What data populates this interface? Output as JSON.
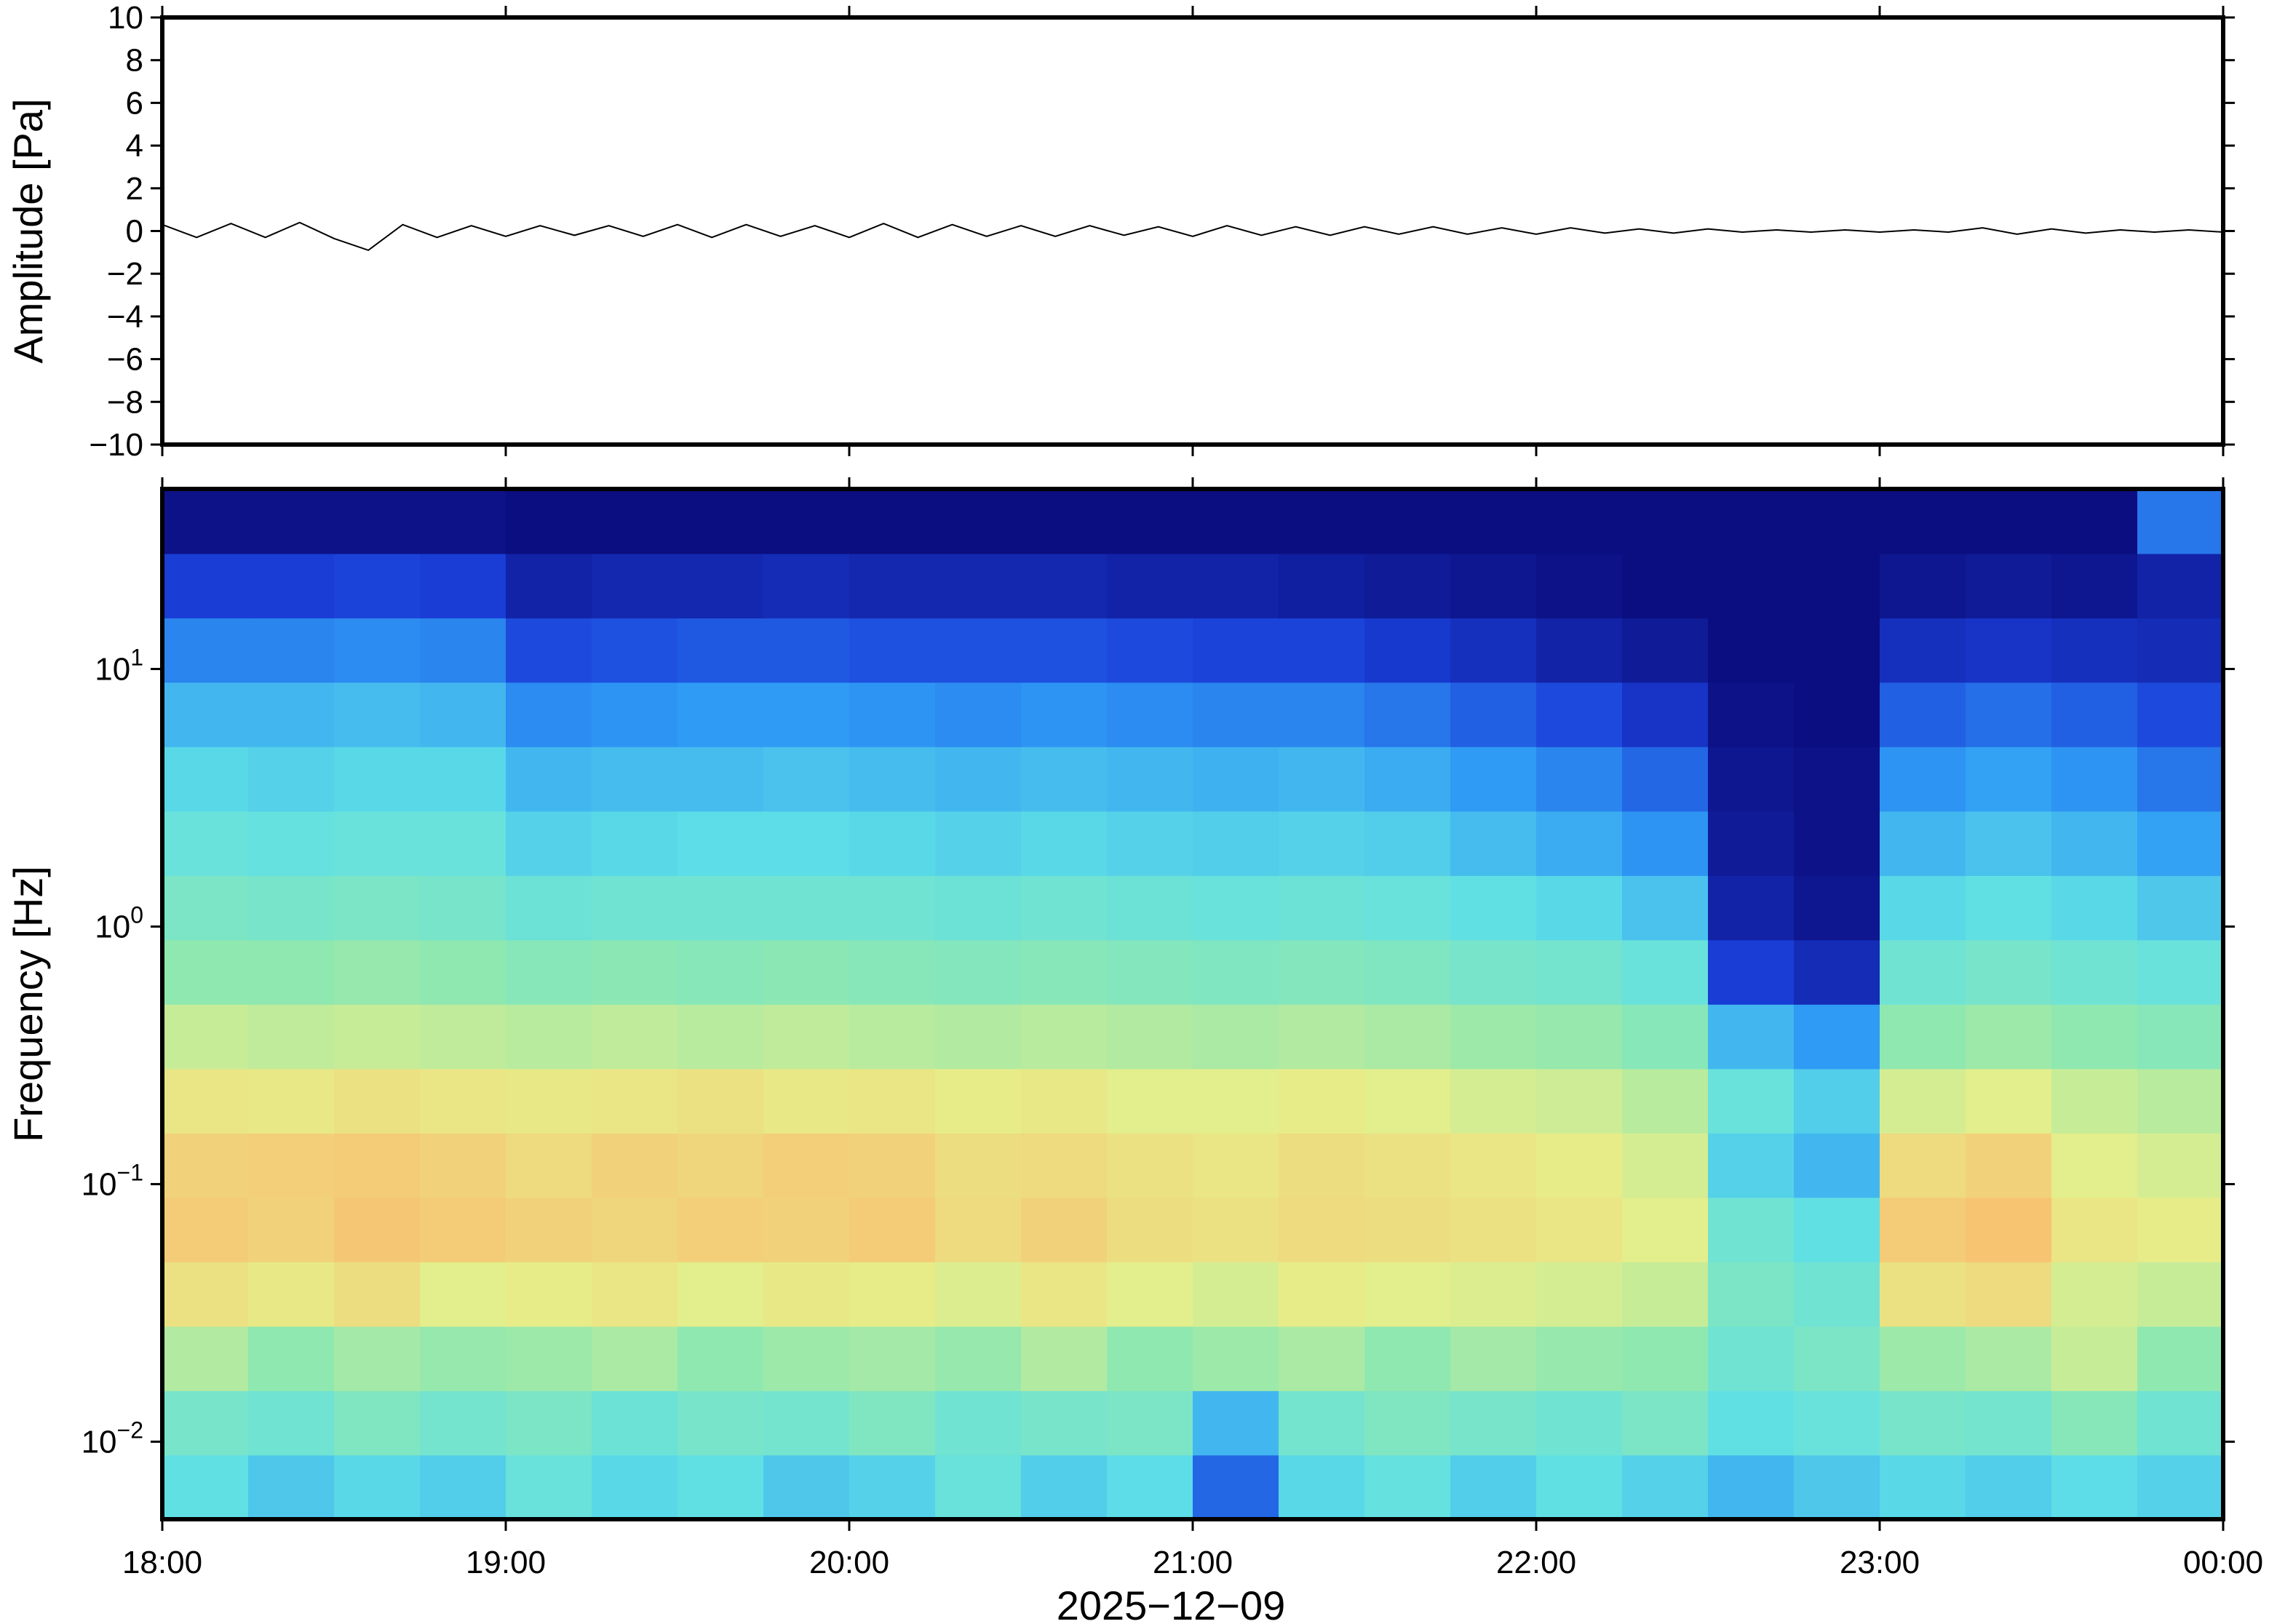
{
  "chart_data": [
    {
      "type": "line",
      "ylabel": "Amplitude [Pa]",
      "color": "#000000",
      "xlim": [
        18,
        24
      ],
      "xticks": [
        18,
        19,
        20,
        21,
        22,
        23,
        24
      ],
      "ylim": [
        -10,
        10
      ],
      "yticks": [
        {
          "value": -10,
          "label": "−10"
        },
        {
          "value": -8,
          "label": "−8"
        },
        {
          "value": -6,
          "label": "−6"
        },
        {
          "value": -4,
          "label": "−4"
        },
        {
          "value": -2,
          "label": "−2"
        },
        0,
        2,
        4,
        6,
        8,
        10
      ],
      "x": [
        18,
        18.1,
        18.2,
        18.3,
        18.4,
        18.5,
        18.6,
        18.7,
        18.8,
        18.9,
        19,
        19.1,
        19.2,
        19.3,
        19.4,
        19.5,
        19.6,
        19.7,
        19.8,
        19.9,
        20,
        20.1,
        20.2,
        20.3,
        20.4,
        20.5,
        20.6,
        20.7,
        20.8,
        20.9,
        21,
        21.1,
        21.2,
        21.3,
        21.4,
        21.5,
        21.6,
        21.7,
        21.8,
        21.9,
        22,
        22.1,
        22.2,
        22.3,
        22.4,
        22.5,
        22.6,
        22.7,
        22.8,
        22.9,
        23,
        23.1,
        23.2,
        23.3,
        23.4,
        23.5,
        23.6,
        23.7,
        23.8,
        23.9,
        24
      ],
      "values": [
        0.3,
        -0.3,
        0.35,
        -0.3,
        0.4,
        -0.35,
        -0.9,
        0.3,
        -0.3,
        0.25,
        -0.25,
        0.25,
        -0.2,
        0.25,
        -0.25,
        0.3,
        -0.3,
        0.3,
        -0.25,
        0.25,
        -0.3,
        0.35,
        -0.3,
        0.3,
        -0.25,
        0.25,
        -0.25,
        0.25,
        -0.2,
        0.2,
        -0.25,
        0.25,
        -0.2,
        0.2,
        -0.2,
        0.2,
        -0.15,
        0.2,
        -0.15,
        0.15,
        -0.15,
        0.15,
        -0.1,
        0.1,
        -0.1,
        0.1,
        -0.05,
        0.05,
        -0.05,
        0.05,
        -0.05,
        0.05,
        -0.05,
        0.15,
        -0.15,
        0.1,
        -0.1,
        0.05,
        -0.05,
        0.05,
        -0.05
      ]
    },
    {
      "type": "heatmap",
      "ylabel": "Frequency [Hz]",
      "xlabel": "2025−12−09",
      "log_y": true,
      "xlim": [
        18,
        24
      ],
      "xticks": [
        {
          "value": 18,
          "label": "18:00"
        },
        {
          "value": 19,
          "label": "19:00"
        },
        {
          "value": 20,
          "label": "20:00"
        },
        {
          "value": 21,
          "label": "21:00"
        },
        {
          "value": 22,
          "label": "22:00"
        },
        {
          "value": 23,
          "label": "23:00"
        },
        {
          "value": 24,
          "label": "00:00"
        }
      ],
      "ylim": [
        0.005,
        50
      ],
      "yticks": [
        {
          "value": 0.01,
          "label": "10",
          "exponent": "−2"
        },
        {
          "value": 0.1,
          "label": "10",
          "exponent": "−1"
        },
        {
          "value": 1,
          "label": "10",
          "exponent": "0"
        },
        {
          "value": 10,
          "label": "10",
          "exponent": "1"
        }
      ],
      "x_edges": [
        18,
        18.25,
        18.5,
        18.75,
        19,
        19.25,
        19.5,
        19.75,
        20,
        20.25,
        20.5,
        20.75,
        21,
        21.25,
        21.5,
        21.75,
        22,
        22.25,
        22.5,
        22.75,
        23,
        23.25,
        23.5,
        23.75,
        24
      ],
      "y_edges": [
        0.005,
        0.00889,
        0.0158,
        0.0281,
        0.05,
        0.0889,
        0.158,
        0.281,
        0.5,
        0.889,
        1.58,
        2.81,
        5,
        8.89,
        15.8,
        28.1,
        50
      ],
      "zlim": [
        0,
        1
      ],
      "colormap": [
        "#0a0a78",
        "#1a3fd9",
        "#2f9bf5",
        "#5fe0e6",
        "#8fe8b0",
        "#e6ee8a",
        "#f8c070",
        "#f48a50",
        "#e04030"
      ],
      "z": [
        [
          0.38,
          0.33,
          0.36,
          0.34,
          0.4,
          0.36,
          0.38,
          0.33,
          0.35,
          0.4,
          0.34,
          0.37,
          0.18,
          0.36,
          0.39,
          0.34,
          0.38,
          0.35,
          0.3,
          0.33,
          0.36,
          0.34,
          0.37,
          0.35
        ],
        [
          0.44,
          0.42,
          0.46,
          0.43,
          0.45,
          0.41,
          0.44,
          0.43,
          0.46,
          0.42,
          0.44,
          0.45,
          0.3,
          0.43,
          0.46,
          0.44,
          0.42,
          0.45,
          0.38,
          0.4,
          0.44,
          0.43,
          0.48,
          0.42
        ],
        [
          0.55,
          0.5,
          0.53,
          0.51,
          0.52,
          0.54,
          0.5,
          0.52,
          0.53,
          0.51,
          0.55,
          0.5,
          0.52,
          0.54,
          0.5,
          0.53,
          0.51,
          0.5,
          0.42,
          0.45,
          0.52,
          0.54,
          0.58,
          0.5
        ],
        [
          0.66,
          0.64,
          0.67,
          0.62,
          0.63,
          0.65,
          0.62,
          0.64,
          0.63,
          0.61,
          0.65,
          0.62,
          0.6,
          0.63,
          0.62,
          0.61,
          0.6,
          0.58,
          0.45,
          0.42,
          0.66,
          0.68,
          0.6,
          0.58
        ],
        [
          0.72,
          0.7,
          0.73,
          0.72,
          0.7,
          0.69,
          0.71,
          0.7,
          0.72,
          0.68,
          0.7,
          0.67,
          0.66,
          0.68,
          0.67,
          0.66,
          0.65,
          0.62,
          0.42,
          0.38,
          0.72,
          0.74,
          0.65,
          0.63
        ],
        [
          0.7,
          0.71,
          0.72,
          0.7,
          0.68,
          0.7,
          0.69,
          0.71,
          0.7,
          0.67,
          0.68,
          0.66,
          0.65,
          0.67,
          0.66,
          0.65,
          0.63,
          0.6,
          0.35,
          0.3,
          0.68,
          0.7,
          0.62,
          0.6
        ],
        [
          0.65,
          0.64,
          0.66,
          0.65,
          0.64,
          0.65,
          0.66,
          0.64,
          0.65,
          0.63,
          0.64,
          0.62,
          0.62,
          0.63,
          0.62,
          0.6,
          0.59,
          0.56,
          0.4,
          0.34,
          0.6,
          0.62,
          0.58,
          0.56
        ],
        [
          0.58,
          0.57,
          0.58,
          0.57,
          0.56,
          0.57,
          0.56,
          0.57,
          0.56,
          0.55,
          0.56,
          0.55,
          0.54,
          0.55,
          0.54,
          0.52,
          0.51,
          0.48,
          0.3,
          0.25,
          0.5,
          0.52,
          0.5,
          0.48
        ],
        [
          0.5,
          0.5,
          0.51,
          0.5,
          0.48,
          0.49,
          0.48,
          0.49,
          0.48,
          0.47,
          0.48,
          0.47,
          0.46,
          0.47,
          0.46,
          0.44,
          0.43,
          0.4,
          0.12,
          0.08,
          0.42,
          0.44,
          0.42,
          0.4
        ],
        [
          0.45,
          0.44,
          0.45,
          0.44,
          0.41,
          0.42,
          0.42,
          0.42,
          0.42,
          0.41,
          0.42,
          0.41,
          0.4,
          0.41,
          0.4,
          0.38,
          0.36,
          0.32,
          0.06,
          0.03,
          0.36,
          0.38,
          0.36,
          0.33
        ],
        [
          0.4,
          0.39,
          0.4,
          0.4,
          0.35,
          0.36,
          0.37,
          0.37,
          0.36,
          0.35,
          0.36,
          0.35,
          0.34,
          0.35,
          0.34,
          0.31,
          0.28,
          0.24,
          0.04,
          0.02,
          0.3,
          0.32,
          0.3,
          0.26
        ],
        [
          0.36,
          0.35,
          0.36,
          0.36,
          0.3,
          0.31,
          0.31,
          0.32,
          0.31,
          0.3,
          0.31,
          0.3,
          0.29,
          0.3,
          0.28,
          0.25,
          0.22,
          0.18,
          0.03,
          0.02,
          0.24,
          0.26,
          0.24,
          0.2
        ],
        [
          0.3,
          0.3,
          0.31,
          0.3,
          0.23,
          0.24,
          0.25,
          0.25,
          0.24,
          0.23,
          0.24,
          0.23,
          0.22,
          0.22,
          0.2,
          0.17,
          0.14,
          0.1,
          0.02,
          0.01,
          0.17,
          0.19,
          0.17,
          0.14
        ],
        [
          0.22,
          0.22,
          0.23,
          0.22,
          0.14,
          0.15,
          0.16,
          0.16,
          0.15,
          0.15,
          0.15,
          0.14,
          0.13,
          0.13,
          0.11,
          0.09,
          0.06,
          0.04,
          0.01,
          0.01,
          0.09,
          0.1,
          0.09,
          0.08
        ],
        [
          0.12,
          0.12,
          0.13,
          0.12,
          0.06,
          0.07,
          0.07,
          0.08,
          0.07,
          0.07,
          0.07,
          0.06,
          0.06,
          0.05,
          0.04,
          0.03,
          0.02,
          0.01,
          0.01,
          0.01,
          0.03,
          0.04,
          0.03,
          0.06
        ],
        [
          0.02,
          0.02,
          0.02,
          0.02,
          0.01,
          0.01,
          0.01,
          0.01,
          0.01,
          0.01,
          0.01,
          0.01,
          0.01,
          0.01,
          0.01,
          0.01,
          0.01,
          0.01,
          0.01,
          0.01,
          0.01,
          0.01,
          0.01,
          0.2
        ]
      ]
    }
  ]
}
